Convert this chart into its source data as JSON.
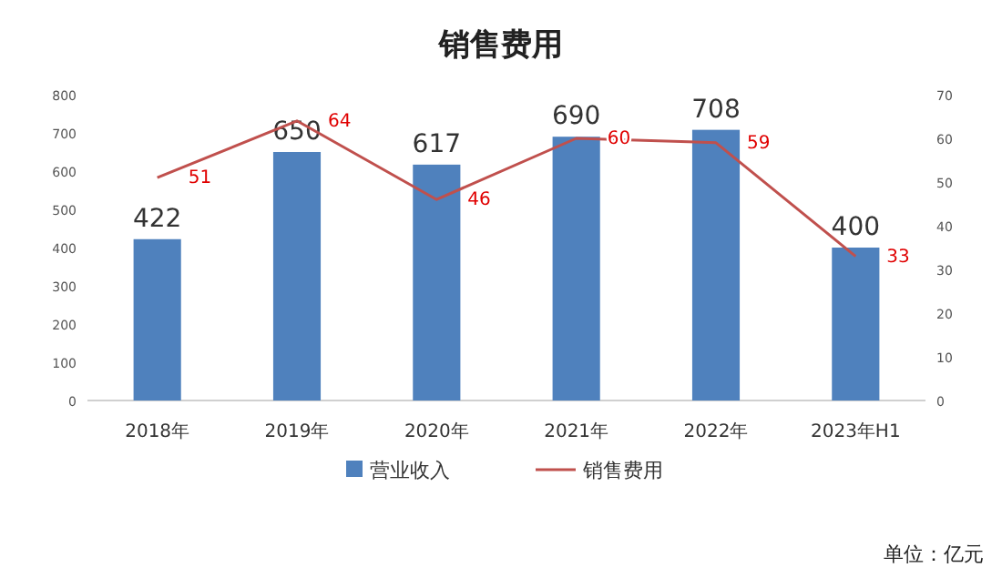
{
  "chart_data": {
    "type": "bar",
    "title": "销售费用",
    "categories": [
      "2018年",
      "2019年",
      "2020年",
      "2021年",
      "2022年",
      "2023年H1"
    ],
    "series": [
      {
        "name": "营业收入",
        "color": "#4f81bd",
        "values": [
          422,
          650,
          617,
          690,
          708,
          400
        ]
      },
      {
        "name": "销售费用",
        "type": "line",
        "axis": "y2",
        "color": "#c0504d",
        "values": [
          51,
          64,
          46,
          60,
          59,
          33
        ]
      }
    ],
    "ylim": [
      0,
      800
    ],
    "yticks": [
      0,
      100,
      200,
      300,
      400,
      500,
      600,
      700,
      800
    ],
    "y2lim": [
      0,
      70
    ],
    "y2ticks": [
      0,
      10,
      20,
      30,
      40,
      50,
      60,
      70
    ],
    "data_labels": true,
    "legend": "bottom",
    "annotations": [
      "单位：亿元"
    ]
  }
}
